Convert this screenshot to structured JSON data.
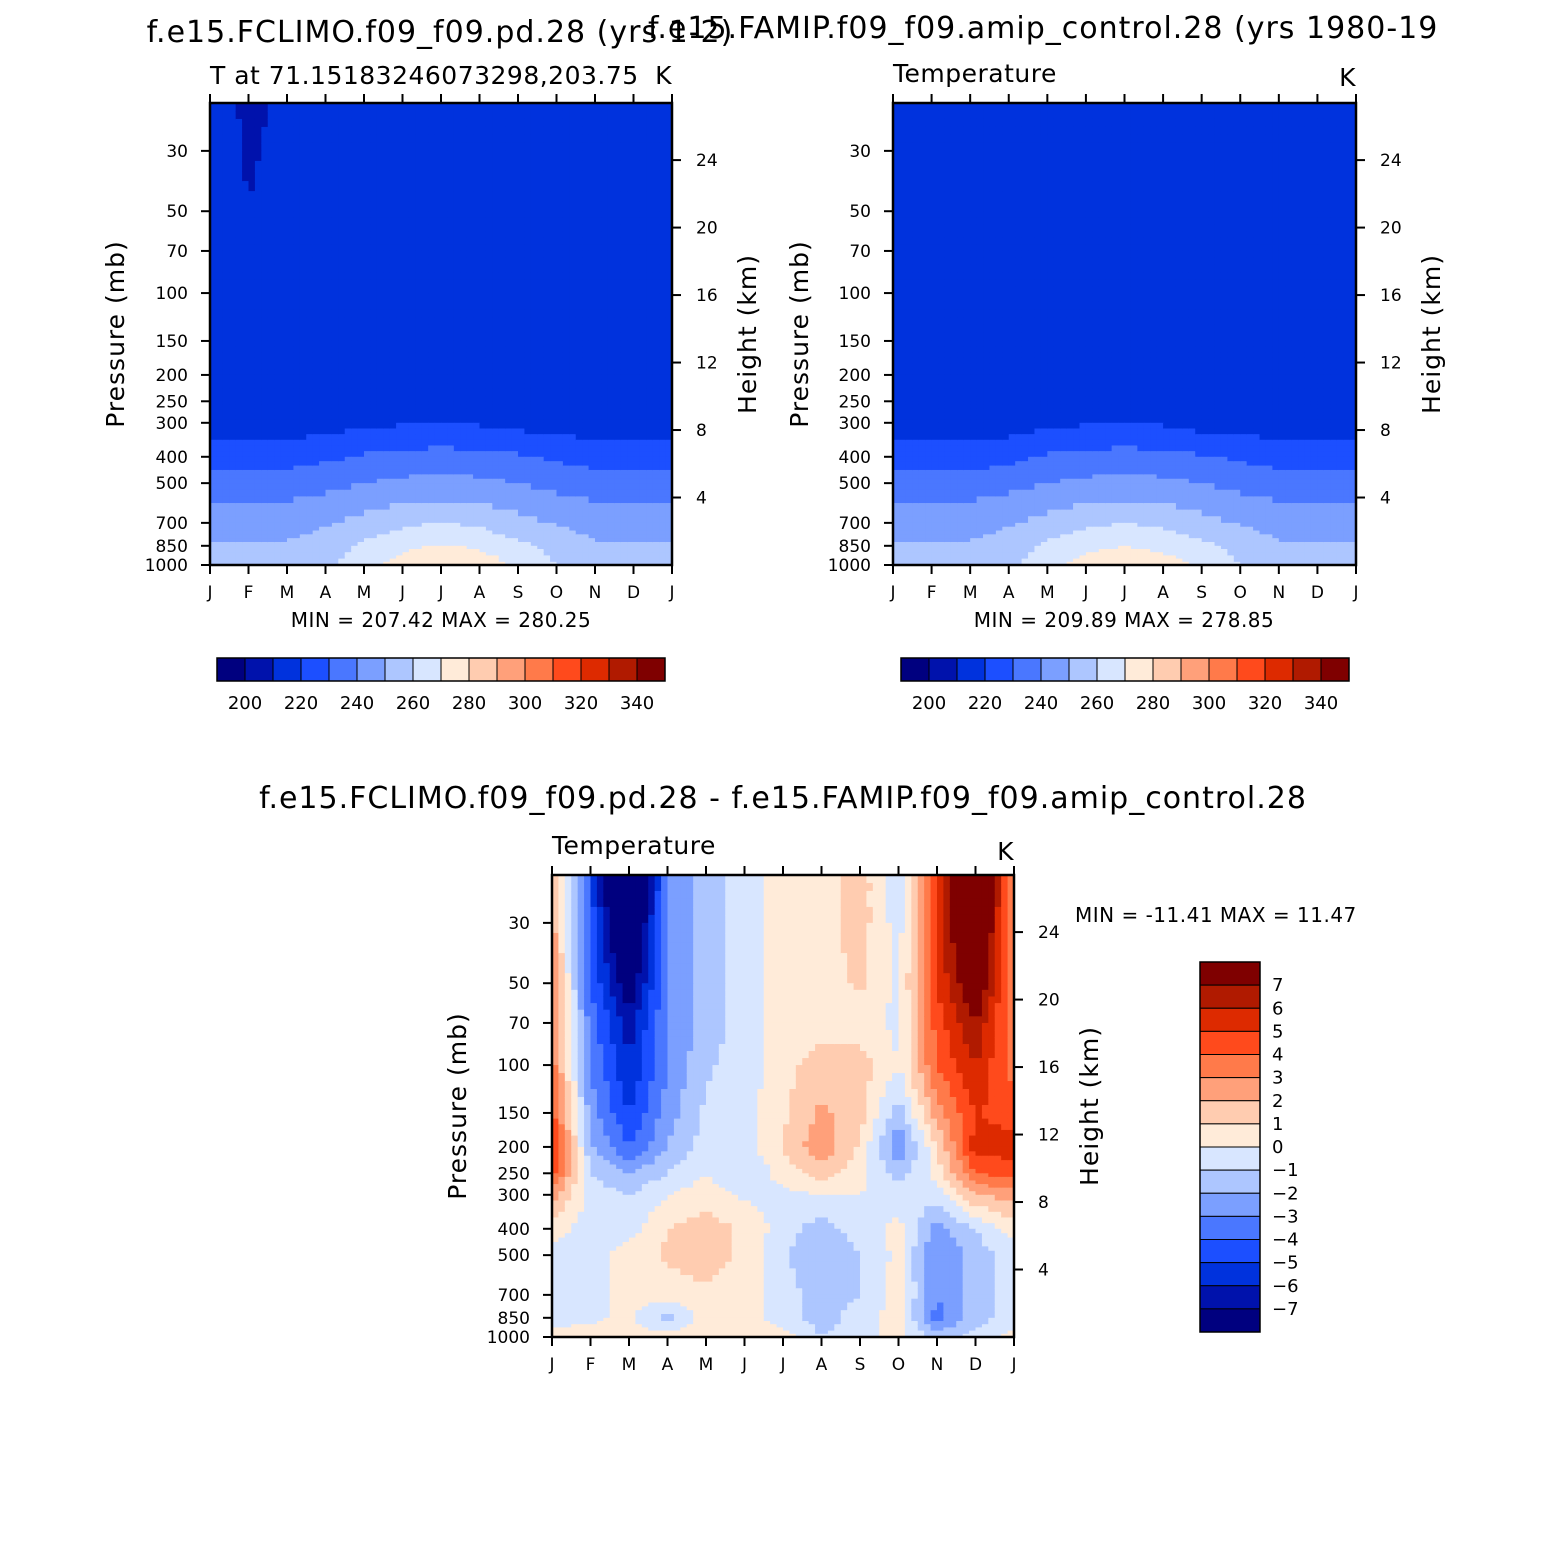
{
  "colors": {
    "abs_palette": [
      "#00007f",
      "#0012ac",
      "#0032dd",
      "#1c4fff",
      "#4a77ff",
      "#7b9fff",
      "#adc6ff",
      "#d8e6ff",
      "#ffebd9",
      "#ffccb0",
      "#ffa07a",
      "#ff7a4a",
      "#ff4a1c",
      "#dd2a00",
      "#b01a00",
      "#7f0000"
    ],
    "diff_palette": [
      "#7f0000",
      "#b01a00",
      "#dd2a00",
      "#ff4a1c",
      "#ff7a4a",
      "#ffa07a",
      "#ffccb0",
      "#ffebd9",
      "#d8e6ff",
      "#adc6ff",
      "#7b9fff",
      "#4a77ff",
      "#1c4fff",
      "#0032dd",
      "#0012ac",
      "#00007f"
    ]
  },
  "chart_data": [
    {
      "type": "heatmap",
      "title": "f.e15.FCLIMO.f09_f09.pd.28 (yrs 1-2)",
      "subtitle_left": "T at 71.15183246073298,203.75",
      "subtitle_right": "K",
      "xlabel": "",
      "ylabel": "Pressure (mb)",
      "ylabel_right": "Height (km)",
      "x_ticklabels": [
        "J",
        "F",
        "M",
        "A",
        "M",
        "J",
        "J",
        "A",
        "S",
        "O",
        "N",
        "D",
        "J"
      ],
      "y_ticks": [
        30,
        50,
        70,
        100,
        150,
        200,
        250,
        300,
        400,
        500,
        700,
        850,
        1000
      ],
      "y_right_ticks": [
        24,
        20,
        16,
        12,
        8,
        4
      ],
      "ylim": [
        1000,
        20
      ],
      "yscale": "log",
      "min_max_text": "MIN = 207.42 MAX = 280.25",
      "colorbar": {
        "orientation": "horizontal",
        "levels": [
          200,
          220,
          240,
          260,
          280,
          300,
          320,
          340
        ],
        "bins": 16,
        "range": [
          190,
          350
        ]
      },
      "grid": {
        "months": 13,
        "pressures": [
          20,
          30,
          50,
          70,
          100,
          150,
          200,
          250,
          300,
          400,
          500,
          700,
          850,
          1000
        ]
      }
    },
    {
      "type": "heatmap",
      "title": "f.e15.FAMIP.f09_f09.amip_control.28 (yrs 1980-19",
      "subtitle_left": "Temperature",
      "subtitle_right": "K",
      "xlabel": "",
      "ylabel": "Pressure (mb)",
      "ylabel_right": "Height (km)",
      "x_ticklabels": [
        "J",
        "F",
        "M",
        "A",
        "M",
        "J",
        "J",
        "A",
        "S",
        "O",
        "N",
        "D",
        "J"
      ],
      "y_ticks": [
        30,
        50,
        70,
        100,
        150,
        200,
        250,
        300,
        400,
        500,
        700,
        850,
        1000
      ],
      "y_right_ticks": [
        24,
        20,
        16,
        12,
        8,
        4
      ],
      "ylim": [
        1000,
        20
      ],
      "yscale": "log",
      "min_max_text": "MIN = 209.89 MAX = 278.85",
      "colorbar": {
        "orientation": "horizontal",
        "levels": [
          200,
          220,
          240,
          260,
          280,
          300,
          320,
          340
        ],
        "bins": 16,
        "range": [
          190,
          350
        ]
      }
    },
    {
      "type": "heatmap",
      "title": "f.e15.FCLIMO.f09_f09.pd.28 - f.e15.FAMIP.f09_f09.amip_control.28",
      "subtitle_left": "Temperature",
      "subtitle_right": "K",
      "xlabel": "",
      "ylabel": "Pressure (mb)",
      "ylabel_right": "Height (km)",
      "x_ticklabels": [
        "J",
        "F",
        "M",
        "A",
        "M",
        "J",
        "J",
        "A",
        "S",
        "O",
        "N",
        "D",
        "J"
      ],
      "y_ticks": [
        30,
        50,
        70,
        100,
        150,
        200,
        250,
        300,
        400,
        500,
        700,
        850,
        1000
      ],
      "y_right_ticks": [
        24,
        20,
        16,
        12,
        8,
        4
      ],
      "ylim": [
        1000,
        20
      ],
      "yscale": "log",
      "min_max_text": "MIN = -11.41 MAX = 11.47",
      "colorbar": {
        "orientation": "vertical",
        "levels": [
          7,
          6,
          5,
          4,
          3,
          2,
          1,
          0,
          -1,
          -2,
          -3,
          -4,
          -5,
          -6,
          -7
        ],
        "bins": 16
      }
    }
  ],
  "fields": {
    "p1": [
      [
        215,
        208,
        212,
        218,
        218,
        218,
        218,
        218,
        218,
        214,
        214,
        218,
        214
      ],
      [
        215,
        209,
        212,
        218,
        218,
        218,
        218,
        218,
        218,
        214,
        214,
        218,
        214
      ],
      [
        215,
        210,
        213,
        218,
        218,
        218,
        218,
        218,
        217,
        214,
        214,
        218,
        215
      ],
      [
        215,
        213,
        214,
        218,
        218,
        218,
        218,
        218,
        217,
        215,
        214,
        218,
        216
      ],
      [
        216,
        215,
        215,
        217,
        218,
        218,
        218,
        218,
        217,
        216,
        215,
        218,
        216
      ],
      [
        217,
        217,
        217,
        217,
        218,
        218,
        218,
        218,
        217,
        217,
        216,
        217,
        217
      ],
      [
        217,
        217,
        217,
        217,
        219,
        219,
        219,
        219,
        218,
        216,
        216,
        216,
        217
      ],
      [
        216,
        216,
        216,
        216,
        219,
        219,
        219,
        219,
        218,
        216,
        215,
        215,
        216
      ],
      [
        215,
        215,
        215,
        215,
        218,
        219,
        219,
        219,
        217,
        215,
        215,
        215,
        215
      ],
      [
        226,
        226,
        226,
        228,
        231,
        233,
        234,
        233,
        231,
        228,
        226,
        226,
        226
      ],
      [
        235,
        235,
        235,
        237,
        240,
        242,
        243,
        242,
        240,
        237,
        235,
        235,
        235
      ],
      [
        246,
        246,
        246,
        249,
        253,
        258,
        260,
        258,
        253,
        249,
        246,
        246,
        246
      ],
      [
        251,
        251,
        251,
        254,
        262,
        267,
        271,
        268,
        262,
        257,
        251,
        251,
        251
      ],
      [
        252,
        252,
        252,
        257,
        267,
        275,
        281,
        277,
        268,
        260,
        252,
        252,
        252
      ]
    ],
    "p2": [
      [
        214,
        214,
        214,
        218,
        218,
        218,
        220,
        218,
        216,
        214,
        214,
        214,
        214
      ],
      [
        215,
        215,
        215,
        218,
        218,
        218,
        219,
        218,
        216,
        214,
        214,
        214,
        215
      ],
      [
        215,
        215,
        215,
        218,
        218,
        218,
        218,
        218,
        217,
        214,
        214,
        214,
        215
      ],
      [
        216,
        216,
        216,
        218,
        218,
        218,
        218,
        218,
        217,
        214,
        214,
        215,
        216
      ],
      [
        216,
        216,
        216,
        218,
        218,
        218,
        218,
        218,
        217,
        215,
        215,
        216,
        216
      ],
      [
        217,
        217,
        217,
        218,
        218,
        218,
        218,
        218,
        218,
        217,
        218,
        217,
        217
      ],
      [
        216,
        216,
        216,
        218,
        218,
        218,
        218,
        218,
        218,
        218,
        218,
        218,
        216
      ],
      [
        215,
        215,
        215,
        216,
        218,
        219,
        219,
        219,
        217,
        216,
        216,
        216,
        215
      ],
      [
        214,
        214,
        214,
        215,
        218,
        219,
        219,
        219,
        216,
        215,
        215,
        215,
        214
      ],
      [
        225,
        225,
        225,
        227,
        231,
        233,
        234,
        233,
        231,
        228,
        226,
        225,
        225
      ],
      [
        235,
        235,
        235,
        237,
        240,
        242,
        243,
        242,
        240,
        237,
        235,
        235,
        235
      ],
      [
        246,
        246,
        246,
        249,
        253,
        258,
        260,
        258,
        253,
        249,
        246,
        246,
        246
      ],
      [
        251,
        251,
        251,
        254,
        262,
        267,
        270,
        267,
        262,
        257,
        251,
        251,
        251
      ],
      [
        252,
        252,
        252,
        257,
        267,
        274,
        279,
        275,
        268,
        260,
        252,
        252,
        252
      ]
    ],
    "d": [
      [
        2.5,
        -4.5,
        -11.4,
        -3,
        -1.5,
        -0.5,
        0.5,
        0.5,
        1.5,
        -0.5,
        5,
        11.5,
        2.5
      ],
      [
        2.5,
        -4.5,
        -10,
        -3,
        -1.5,
        -0.5,
        0.5,
        0.5,
        1.5,
        -0.5,
        5,
        10.5,
        2.5
      ],
      [
        3,
        -4,
        -8,
        -3,
        -1.5,
        -0.5,
        0.5,
        0.5,
        1.2,
        -0.3,
        5,
        8.5,
        3
      ],
      [
        3.2,
        -3.5,
        -6.5,
        -3,
        -1.5,
        -0.5,
        0.5,
        0.5,
        0.5,
        -0.3,
        4.5,
        7,
        3.2
      ],
      [
        3.5,
        -3,
        -6,
        -3,
        -1.2,
        -0.5,
        0.6,
        1.5,
        1.5,
        0,
        4,
        6,
        3.5
      ],
      [
        4.5,
        -2.5,
        -5,
        -2.5,
        -0.8,
        -0.5,
        0.8,
        2.2,
        1.5,
        -1.5,
        2.5,
        5,
        4.5
      ],
      [
        5.5,
        -1.8,
        -4,
        -2,
        -0.5,
        -0.5,
        1,
        2.8,
        0.8,
        -3,
        1,
        5.5,
        5.5
      ],
      [
        4.5,
        -1,
        -2,
        -1,
        0,
        -1,
        0.5,
        1.5,
        0.5,
        -1.5,
        0.5,
        4,
        4.5
      ],
      [
        2.5,
        -0.5,
        -1,
        0,
        0.5,
        -0.2,
        -0.3,
        0,
        0,
        -0.5,
        -0.5,
        2,
        2.5
      ],
      [
        0.5,
        -0.5,
        -0.5,
        1,
        1.5,
        0.8,
        -0.5,
        -1.5,
        -0.5,
        0.3,
        -2.5,
        -1,
        0.5
      ],
      [
        -0.5,
        -0.5,
        0.5,
        1.2,
        1.5,
        0.8,
        -0.8,
        -2,
        -1,
        0.3,
        -3,
        -1.5,
        -0.5
      ],
      [
        -0.5,
        -0.5,
        0.5,
        0.5,
        0.8,
        0.5,
        -0.5,
        -1.5,
        -1,
        0.5,
        -3,
        -1.5,
        -0.5
      ],
      [
        -0.5,
        -0.2,
        0.2,
        -1.5,
        0.5,
        0.5,
        -0.5,
        -1.5,
        -0.5,
        0.5,
        -3.5,
        -1.5,
        -0.5
      ],
      [
        0.5,
        0.5,
        0.5,
        0.5,
        0.5,
        0.5,
        0.5,
        -1,
        -0.5,
        0.5,
        -1.5,
        -0.5,
        0.5
      ]
    ]
  }
}
